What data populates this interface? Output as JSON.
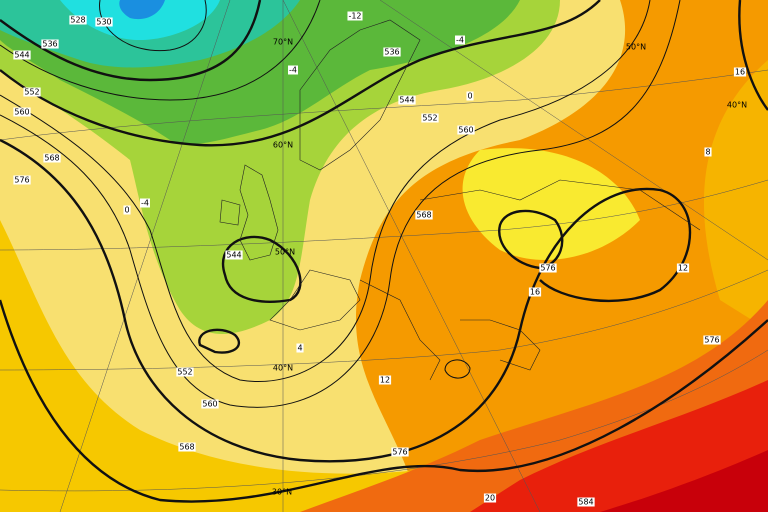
{
  "labels": [
    "528",
    "530",
    "536",
    "544",
    "552",
    "560",
    "568",
    "576",
    "0",
    "-4",
    "544",
    "552",
    "560",
    "568",
    "576",
    "584",
    "20",
    "30°N",
    "40°N",
    "12",
    "-12",
    "70°N",
    "-4",
    "536",
    "544",
    "-4",
    "0",
    "552",
    "560",
    "60°N",
    "50°N",
    "568",
    "576",
    "16",
    "12",
    "8",
    "576",
    "50°N",
    "40°N",
    "16",
    "4"
  ]
}
